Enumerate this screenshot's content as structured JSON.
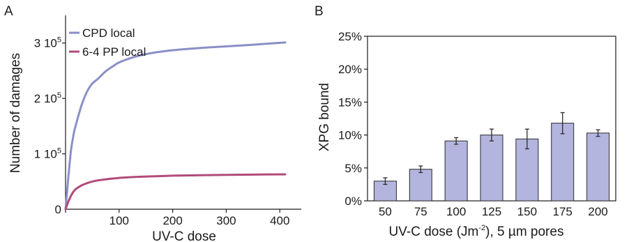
{
  "colors": {
    "cpd": "#8a8fc6",
    "pp64": "#b24a7a",
    "bar_fill": "#b3b5df",
    "bar_stroke": "#2a2a2a",
    "axis": "#1a1a1a"
  },
  "chart_data": [
    {
      "panel": "A",
      "type": "line",
      "xlabel": "UV-C dose",
      "ylabel": "Number of damages",
      "xlim": [
        0,
        440
      ],
      "ylim": [
        0,
        350000
      ],
      "x_ticks": [
        0,
        100,
        200,
        300,
        400
      ],
      "y_ticks": [
        {
          "value": 0,
          "label": "0",
          "exp": ""
        },
        {
          "value": 100000,
          "label": "1 10",
          "exp": "5"
        },
        {
          "value": 200000,
          "label": "2 10",
          "exp": "5"
        },
        {
          "value": 300000,
          "label": "3 10",
          "exp": "5"
        }
      ],
      "grid": false,
      "legend_position": "top-left",
      "series": [
        {
          "name": "CPD local",
          "x": [
            0,
            5,
            10,
            15,
            20,
            30,
            40,
            50,
            60,
            75,
            90,
            100,
            125,
            150,
            175,
            200,
            250,
            300,
            350,
            410
          ],
          "y": [
            0,
            55000,
            105000,
            135000,
            155000,
            188000,
            212000,
            227000,
            235000,
            249000,
            259000,
            265000,
            274000,
            280000,
            284000,
            287000,
            291000,
            294000,
            297000,
            301000
          ]
        },
        {
          "name": "6-4 PP local",
          "x": [
            0,
            5,
            10,
            15,
            20,
            30,
            40,
            50,
            60,
            75,
            100,
            125,
            150,
            200,
            250,
            300,
            350,
            410
          ],
          "y": [
            0,
            13000,
            24000,
            32000,
            37000,
            43000,
            47000,
            50000,
            52000,
            54000,
            56500,
            58000,
            59000,
            60500,
            61300,
            62000,
            62500,
            63000
          ]
        }
      ]
    },
    {
      "panel": "B",
      "type": "bar",
      "xlabel_main": "UV-C dose (Jm",
      "xlabel_sup": "-2",
      "xlabel_rest": "), 5 µm pores",
      "ylabel": "XPG bound",
      "ylim": [
        0,
        25
      ],
      "y_ticks": [
        {
          "value": 0,
          "label": "0%"
        },
        {
          "value": 5,
          "label": "5%"
        },
        {
          "value": 10,
          "label": "10%"
        },
        {
          "value": 15,
          "label": "15%"
        },
        {
          "value": 20,
          "label": "20%"
        },
        {
          "value": 25,
          "label": "25%"
        }
      ],
      "grid": false,
      "categories": [
        "50",
        "75",
        "100",
        "125",
        "150",
        "175",
        "200"
      ],
      "values": [
        3.0,
        4.8,
        9.1,
        10.0,
        9.4,
        11.8,
        10.3
      ],
      "errors": [
        0.5,
        0.5,
        0.5,
        0.9,
        1.5,
        1.6,
        0.5
      ]
    }
  ]
}
